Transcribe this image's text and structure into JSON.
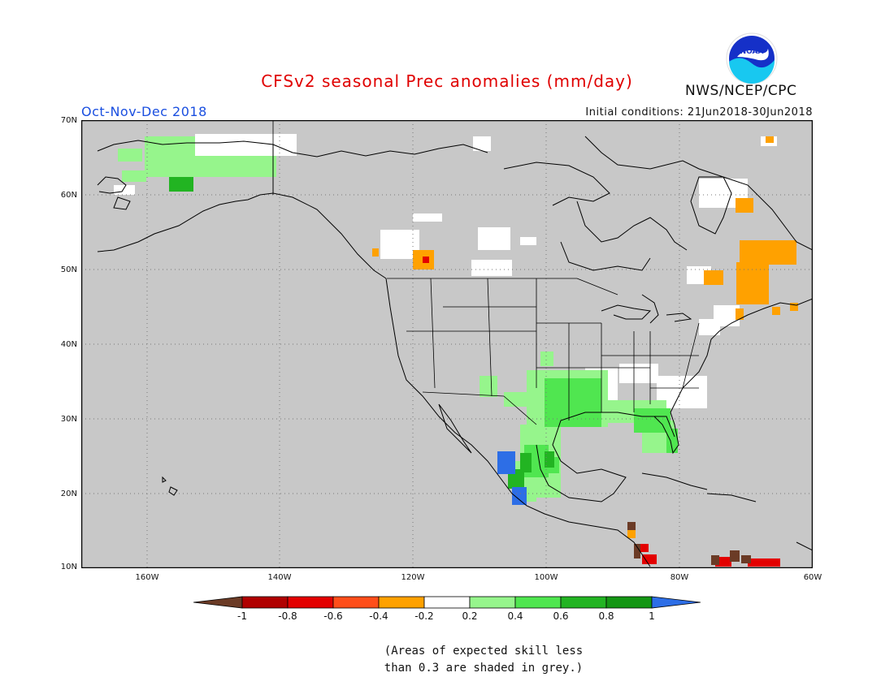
{
  "header": {
    "title": "CFSv2 seasonal Prec anomalies (mm/day)",
    "season": "Oct-Nov-Dec 2018",
    "initial_conditions": "Initial conditions: 21Jun2018-30Jun2018",
    "agency": "NWS/NCEP/CPC",
    "logo_text": "NOAA"
  },
  "map": {
    "region": "North America",
    "lat_labels": [
      "70N",
      "60N",
      "50N",
      "40N",
      "30N",
      "20N",
      "10N"
    ],
    "lon_labels": [
      "160W",
      "140W",
      "120W",
      "100W",
      "80W",
      "60W"
    ],
    "background_color": "#c8c8c8",
    "land_color": "#c8c8c8"
  },
  "legend": {
    "labels": [
      "-1",
      "-0.8",
      "-0.6",
      "-0.4",
      "-0.2",
      "0.2",
      "0.4",
      "0.6",
      "0.8",
      "1"
    ],
    "colors": [
      "#6b3b26",
      "#b00000",
      "#e30000",
      "#ff4e1a",
      "#ffa100",
      "#ffffff",
      "#96f58c",
      "#50e650",
      "#22b422",
      "#149614",
      "#2d6ee6"
    ]
  },
  "note": {
    "line1": "(Areas of expected skill less",
    "line2": "than 0.3 are shaded in grey.)"
  }
}
